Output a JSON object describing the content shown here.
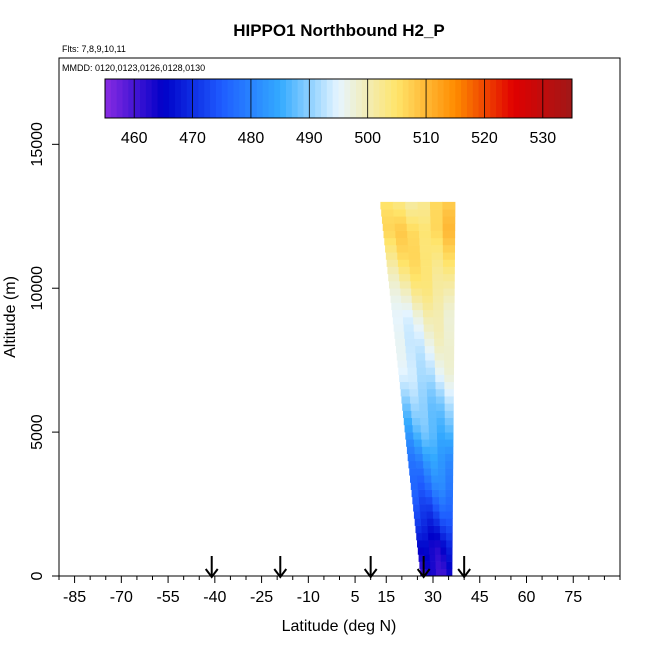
{
  "chart_data": {
    "type": "heatmap",
    "title": "HIPPO1 Northbound H2_P",
    "subtitle_flights": "Flts: 7,8,9,10,11",
    "subtitle_dates": "MMDD: 0120,0123,0126,0128,0130",
    "xlabel": "Latitude (deg N)",
    "ylabel": "Altitude (m)",
    "xlim": [
      -90,
      90
    ],
    "ylim": [
      0,
      18000
    ],
    "x_ticks": [
      -85,
      -70,
      -55,
      -40,
      -25,
      -10,
      5,
      15,
      30,
      45,
      60,
      75
    ],
    "y_ticks": [
      0,
      5000,
      10000,
      15000
    ],
    "colorbar": {
      "range": [
        455,
        535
      ],
      "ticks": [
        460,
        470,
        480,
        490,
        500,
        510,
        520,
        530
      ],
      "colors": [
        "#8a2be2",
        "#0000c8",
        "#1e5cff",
        "#33aaff",
        "#e6f5ff",
        "#ffe46a",
        "#ff8c00",
        "#e00000",
        "#a01818"
      ]
    },
    "flight_markers_lat": [
      -41,
      -19,
      10,
      27,
      40
    ],
    "profile_domain": {
      "lat_left_at_top": 13,
      "lat_left_at_bottom": 26,
      "lat_right_at_top": 37,
      "lat_right_at_bottom": 36,
      "alt_top": 13000,
      "alt_bottom": 0
    },
    "profile_values": [
      {
        "alt": 13000,
        "value": 504
      },
      {
        "alt": 12000,
        "value": 507
      },
      {
        "alt": 11000,
        "value": 505
      },
      {
        "alt": 10000,
        "value": 502
      },
      {
        "alt": 9000,
        "value": 498
      },
      {
        "alt": 8000,
        "value": 496
      },
      {
        "alt": 7000,
        "value": 494
      },
      {
        "alt": 6000,
        "value": 490
      },
      {
        "alt": 5000,
        "value": 487
      },
      {
        "alt": 4000,
        "value": 482
      },
      {
        "alt": 3000,
        "value": 478
      },
      {
        "alt": 2000,
        "value": 472
      },
      {
        "alt": 1000,
        "value": 465
      },
      {
        "alt": 0,
        "value": 462
      }
    ]
  }
}
